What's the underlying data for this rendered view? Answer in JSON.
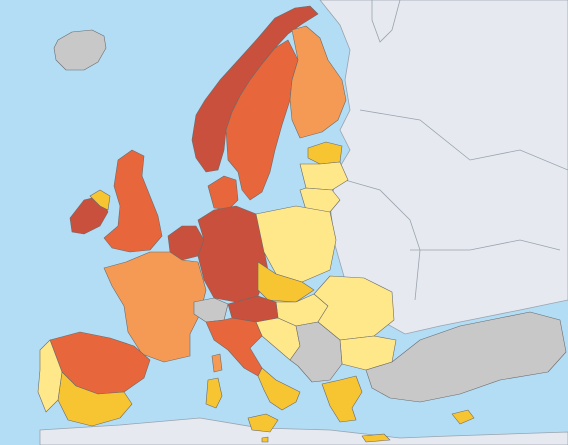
{
  "map": {
    "legend": [],
    "colors": {
      "sea": "#b3dcf5",
      "non_eu_land": "#e6eaf0",
      "no_data": "#c8c8c8",
      "very_low": "#ffe88a",
      "low": "#f7c531",
      "medium": "#f59a55",
      "high": "#e8663c",
      "very_high": "#c9503c"
    },
    "regions": [
      {
        "name": "iceland",
        "class": "no_data"
      },
      {
        "name": "norway",
        "class": "very_high"
      },
      {
        "name": "sweden",
        "class": "high"
      },
      {
        "name": "finland",
        "class": "medium"
      },
      {
        "name": "estonia",
        "class": "low"
      },
      {
        "name": "latvia",
        "class": "very_low"
      },
      {
        "name": "lithuania",
        "class": "very_low"
      },
      {
        "name": "denmark",
        "class": "high"
      },
      {
        "name": "ireland",
        "class": "very_high"
      },
      {
        "name": "northern-ireland",
        "class": "low"
      },
      {
        "name": "uk",
        "class": "high"
      },
      {
        "name": "benelux",
        "class": "very_high"
      },
      {
        "name": "germany",
        "class": "very_high"
      },
      {
        "name": "poland",
        "class": "very_low"
      },
      {
        "name": "czechia-slovakia",
        "class": "low"
      },
      {
        "name": "hungary",
        "class": "very_low"
      },
      {
        "name": "romania",
        "class": "very_low"
      },
      {
        "name": "bulgaria",
        "class": "very_low"
      },
      {
        "name": "france",
        "class": "medium"
      },
      {
        "name": "switzerland",
        "class": "no_data"
      },
      {
        "name": "austria",
        "class": "very_high"
      },
      {
        "name": "slovenia-croatia",
        "class": "very_low"
      },
      {
        "name": "balkans",
        "class": "no_data"
      },
      {
        "name": "spain-north",
        "class": "high"
      },
      {
        "name": "spain-south",
        "class": "low"
      },
      {
        "name": "portugal",
        "class": "very_low"
      },
      {
        "name": "italy-north",
        "class": "high"
      },
      {
        "name": "italy-south",
        "class": "low"
      },
      {
        "name": "sardinia",
        "class": "low"
      },
      {
        "name": "corsica",
        "class": "medium"
      },
      {
        "name": "sicily",
        "class": "low"
      },
      {
        "name": "greece",
        "class": "low"
      },
      {
        "name": "turkey",
        "class": "no_data"
      },
      {
        "name": "cyprus",
        "class": "low"
      },
      {
        "name": "crete",
        "class": "low"
      },
      {
        "name": "malta",
        "class": "low"
      }
    ]
  }
}
